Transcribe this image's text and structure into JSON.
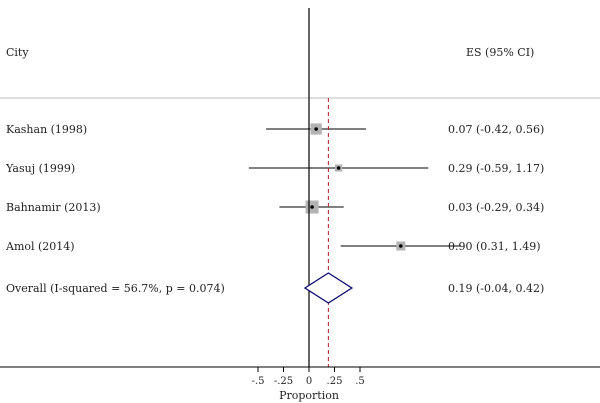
{
  "chart_data": {
    "type": "forest",
    "header": {
      "label_column": "City",
      "value_column": "ES (95% CI)"
    },
    "studies": [
      {
        "name": "Kashan (1998)",
        "es": 0.07,
        "ci": [
          -0.42,
          0.56
        ],
        "es_text": "0.07 (-0.42, 0.56)",
        "weight": 0.8
      },
      {
        "name": "Yasuj (1999)",
        "es": 0.29,
        "ci": [
          -0.59,
          1.17
        ],
        "es_text": "0.29 (-0.59, 1.17)",
        "weight": 0.35
      },
      {
        "name": "Bahnamir (2013)",
        "es": 0.03,
        "ci": [
          -0.29,
          0.34
        ],
        "es_text": "0.03 (-0.29, 0.34)",
        "weight": 1.0
      },
      {
        "name": "Amol (2014)",
        "es": 0.9,
        "ci": [
          0.31,
          1.49
        ],
        "es_text": "0.90 (0.31, 1.49)",
        "weight": 0.55
      }
    ],
    "overall": {
      "name": "Overall (I-squared = 56.7%, p = 0.074)",
      "es": 0.19,
      "ci": [
        -0.04,
        0.42
      ],
      "es_text": "0.19 (-0.04, 0.42)"
    },
    "x_ticks": [
      {
        "value": -0.5,
        "label": "-.5"
      },
      {
        "value": -0.25,
        "label": "-.25"
      },
      {
        "value": 0,
        "label": "0"
      },
      {
        "value": 0.25,
        "label": ".25"
      },
      {
        "value": 0.5,
        "label": ".5"
      }
    ],
    "xlabel": "Proportion",
    "null_line": 0,
    "colors": {
      "line": "#000000",
      "box": "#b3b3b3",
      "diamond": "#0a0a6e",
      "overall_line": "#b22222",
      "separator": "#bdbdbd"
    }
  }
}
